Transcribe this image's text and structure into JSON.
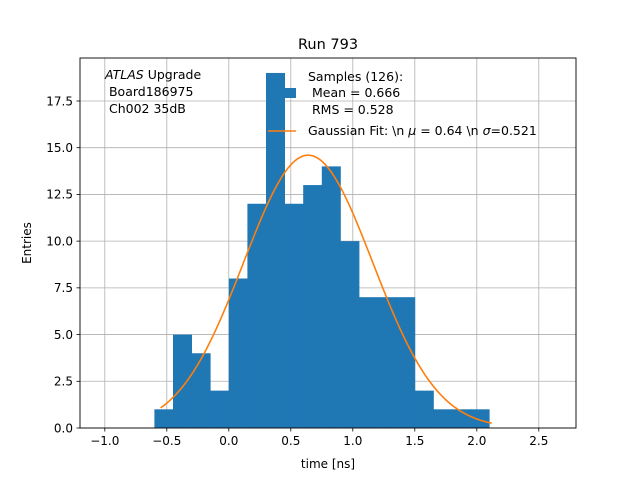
{
  "chart_data": {
    "type": "bar",
    "title": "Run 793",
    "xlabel": "time [ns]",
    "ylabel": "Entries",
    "xlim": [
      -1.2,
      2.8
    ],
    "ylim": [
      0,
      19.8
    ],
    "grid": true,
    "legend_placement": "top-center",
    "xticks": [
      -1.0,
      -0.5,
      0.0,
      0.5,
      1.0,
      1.5,
      2.0,
      2.5
    ],
    "xtick_labels": [
      "−1.0",
      "−0.5",
      "0.0",
      "0.5",
      "1.0",
      "1.5",
      "2.0",
      "2.5"
    ],
    "yticks": [
      0.0,
      2.5,
      5.0,
      7.5,
      10.0,
      12.5,
      15.0,
      17.5
    ],
    "ytick_labels": [
      "0.0",
      "2.5",
      "5.0",
      "7.5",
      "10.0",
      "12.5",
      "15.0",
      "17.5"
    ],
    "annotation": {
      "italic": "ATLAS",
      "line1_rest": " Upgrade",
      "line2": " Board186975",
      "line3": " Ch002 35dB"
    },
    "histogram": {
      "name": "Samples (126):\n Mean = 0.666\n RMS = 0.528",
      "legend_lines": [
        "Samples (126):",
        " Mean = 0.666",
        " RMS = 0.528"
      ],
      "color": "#1f77b4",
      "bins": [
        {
          "x0": -0.6,
          "x1": -0.45,
          "count": 1
        },
        {
          "x0": -0.45,
          "x1": -0.3,
          "count": 5
        },
        {
          "x0": -0.3,
          "x1": -0.15,
          "count": 4
        },
        {
          "x0": -0.15,
          "x1": 0.0,
          "count": 2
        },
        {
          "x0": 0.0,
          "x1": 0.15,
          "count": 8
        },
        {
          "x0": 0.15,
          "x1": 0.3,
          "count": 12
        },
        {
          "x0": 0.3,
          "x1": 0.45,
          "count": 19
        },
        {
          "x0": 0.45,
          "x1": 0.6,
          "count": 12
        },
        {
          "x0": 0.6,
          "x1": 0.75,
          "count": 13
        },
        {
          "x0": 0.75,
          "x1": 0.9,
          "count": 14
        },
        {
          "x0": 0.9,
          "x1": 1.05,
          "count": 10
        },
        {
          "x0": 1.05,
          "x1": 1.2,
          "count": 7
        },
        {
          "x0": 1.2,
          "x1": 1.35,
          "count": 7
        },
        {
          "x0": 1.35,
          "x1": 1.5,
          "count": 7
        },
        {
          "x0": 1.5,
          "x1": 1.65,
          "count": 2
        },
        {
          "x0": 1.65,
          "x1": 1.8,
          "count": 1
        },
        {
          "x0": 1.8,
          "x1": 1.95,
          "count": 1
        },
        {
          "x0": 1.95,
          "x1": 2.1,
          "count": 1
        }
      ]
    },
    "fit": {
      "name": "Gaussian Fit: \\n μ = 0.64 \\n σ=0.521",
      "legend_prefix": "Gaussian Fit: \\n ",
      "legend_mu_sym": "μ",
      "legend_mid": " = 0.64 \\n ",
      "legend_sigma_sym": "σ",
      "legend_suffix": "=0.521",
      "color": "#ff7f0e",
      "mu": 0.64,
      "sigma": 0.521,
      "amplitude": 14.6,
      "x_range": [
        -0.55,
        2.12
      ]
    }
  }
}
